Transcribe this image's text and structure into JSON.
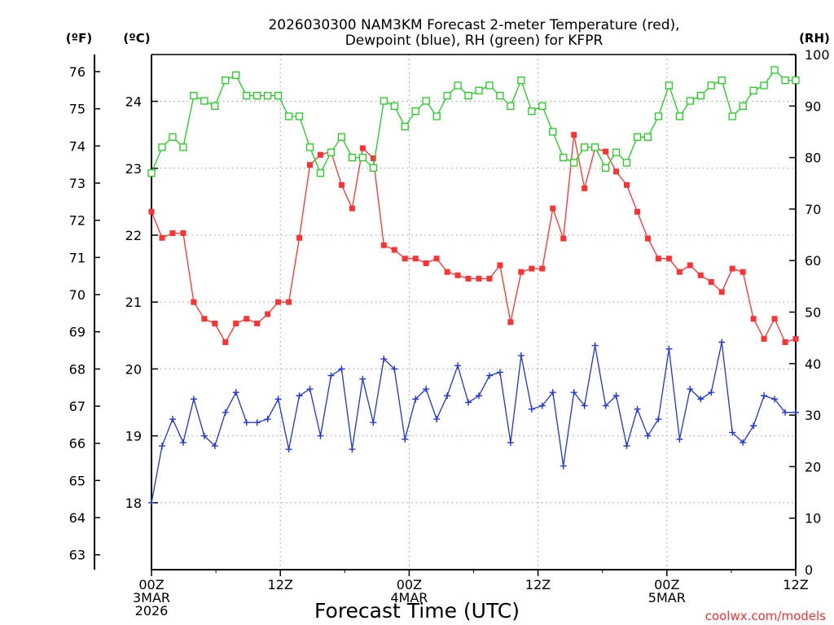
{
  "chart_data": {
    "type": "line",
    "title": [
      "2026030300 NAM3KM Forecast 2-meter Temperature (red),",
      "Dewpoint (blue), RH (green) for KFPR"
    ],
    "xlabel": "Forecast Time (UTC)",
    "credit": "coolwx.com/models",
    "units": {
      "left_f": "(ºF)",
      "left_c": "(ºC)",
      "right": "(RH)"
    },
    "x_hours_range": [
      0,
      60
    ],
    "x_ticks": [
      {
        "hour": 0,
        "lines": [
          "00Z",
          "3MAR",
          "2026"
        ]
      },
      {
        "hour": 12,
        "lines": [
          "12Z"
        ]
      },
      {
        "hour": 24,
        "lines": [
          "00Z",
          "4MAR"
        ]
      },
      {
        "hour": 36,
        "lines": [
          "12Z"
        ]
      },
      {
        "hour": 48,
        "lines": [
          "00Z",
          "5MAR"
        ]
      },
      {
        "hour": 60,
        "lines": [
          "12Z"
        ]
      }
    ],
    "y_celsius_range": [
      17.0,
      24.7
    ],
    "y_celsius_ticks": [
      18,
      19,
      20,
      21,
      22,
      23,
      24
    ],
    "y_fahrenheit_ticks": [
      63,
      64,
      65,
      66,
      67,
      68,
      69,
      70,
      71,
      72,
      73,
      74,
      75,
      76
    ],
    "y_rh_range": [
      0,
      100
    ],
    "y_rh_ticks": [
      0,
      10,
      20,
      30,
      40,
      50,
      60,
      70,
      80,
      90,
      100
    ],
    "series": [
      {
        "name": "2-meter Temperature",
        "unit": "C",
        "color": "#ff3333",
        "marker": "filled-square",
        "values": [
          22.35,
          21.96,
          22.03,
          22.03,
          21.0,
          20.75,
          20.68,
          20.4,
          20.68,
          20.75,
          20.68,
          20.82,
          21.0,
          21.0,
          21.96,
          23.05,
          23.2,
          23.25,
          22.75,
          22.4,
          23.3,
          23.15,
          21.85,
          21.78,
          21.65,
          21.65,
          21.58,
          21.65,
          21.45,
          21.4,
          21.35,
          21.35,
          21.35,
          21.55,
          20.7,
          21.45,
          21.5,
          21.5,
          22.4,
          21.95,
          23.5,
          22.7,
          23.3,
          23.25,
          22.95,
          22.75,
          22.35,
          21.95,
          21.65,
          21.65,
          21.45,
          21.55,
          21.4,
          21.3,
          21.15,
          21.5,
          21.45,
          20.75,
          20.45,
          20.75,
          20.4,
          20.45
        ]
      },
      {
        "name": "Dewpoint",
        "unit": "C",
        "color": "#2233dd",
        "marker": "plus",
        "values": [
          18.0,
          18.85,
          19.25,
          18.9,
          19.55,
          19.0,
          18.85,
          19.35,
          19.65,
          19.2,
          19.2,
          19.25,
          19.55,
          18.8,
          19.6,
          19.7,
          19.0,
          19.9,
          20.0,
          18.8,
          19.85,
          19.2,
          20.15,
          20.0,
          18.95,
          19.55,
          19.7,
          19.25,
          19.6,
          20.05,
          19.5,
          19.6,
          19.9,
          19.95,
          18.9,
          20.2,
          19.4,
          19.45,
          19.65,
          18.55,
          19.65,
          19.45,
          20.35,
          19.45,
          19.6,
          18.85,
          19.4,
          19.0,
          19.25,
          20.3,
          18.95,
          19.7,
          19.55,
          19.65,
          20.4,
          19.05,
          18.9,
          19.15,
          19.6,
          19.55,
          19.35,
          19.35
        ]
      },
      {
        "name": "RH",
        "unit": "%",
        "color": "#22cc22",
        "marker": "open-square",
        "values": [
          77,
          82,
          84,
          82,
          92,
          91,
          90,
          95,
          96,
          92,
          92,
          92,
          92,
          88,
          88,
          82,
          77,
          81,
          84,
          80,
          80,
          78,
          91,
          90,
          86,
          89,
          91,
          88,
          92,
          94,
          92,
          93,
          94,
          92,
          90,
          95,
          89,
          90,
          85,
          80,
          79,
          82,
          82,
          78,
          81,
          79,
          84,
          84,
          88,
          94,
          88,
          91,
          92,
          94,
          95,
          88,
          90,
          93,
          94,
          97,
          95,
          95
        ]
      }
    ]
  }
}
